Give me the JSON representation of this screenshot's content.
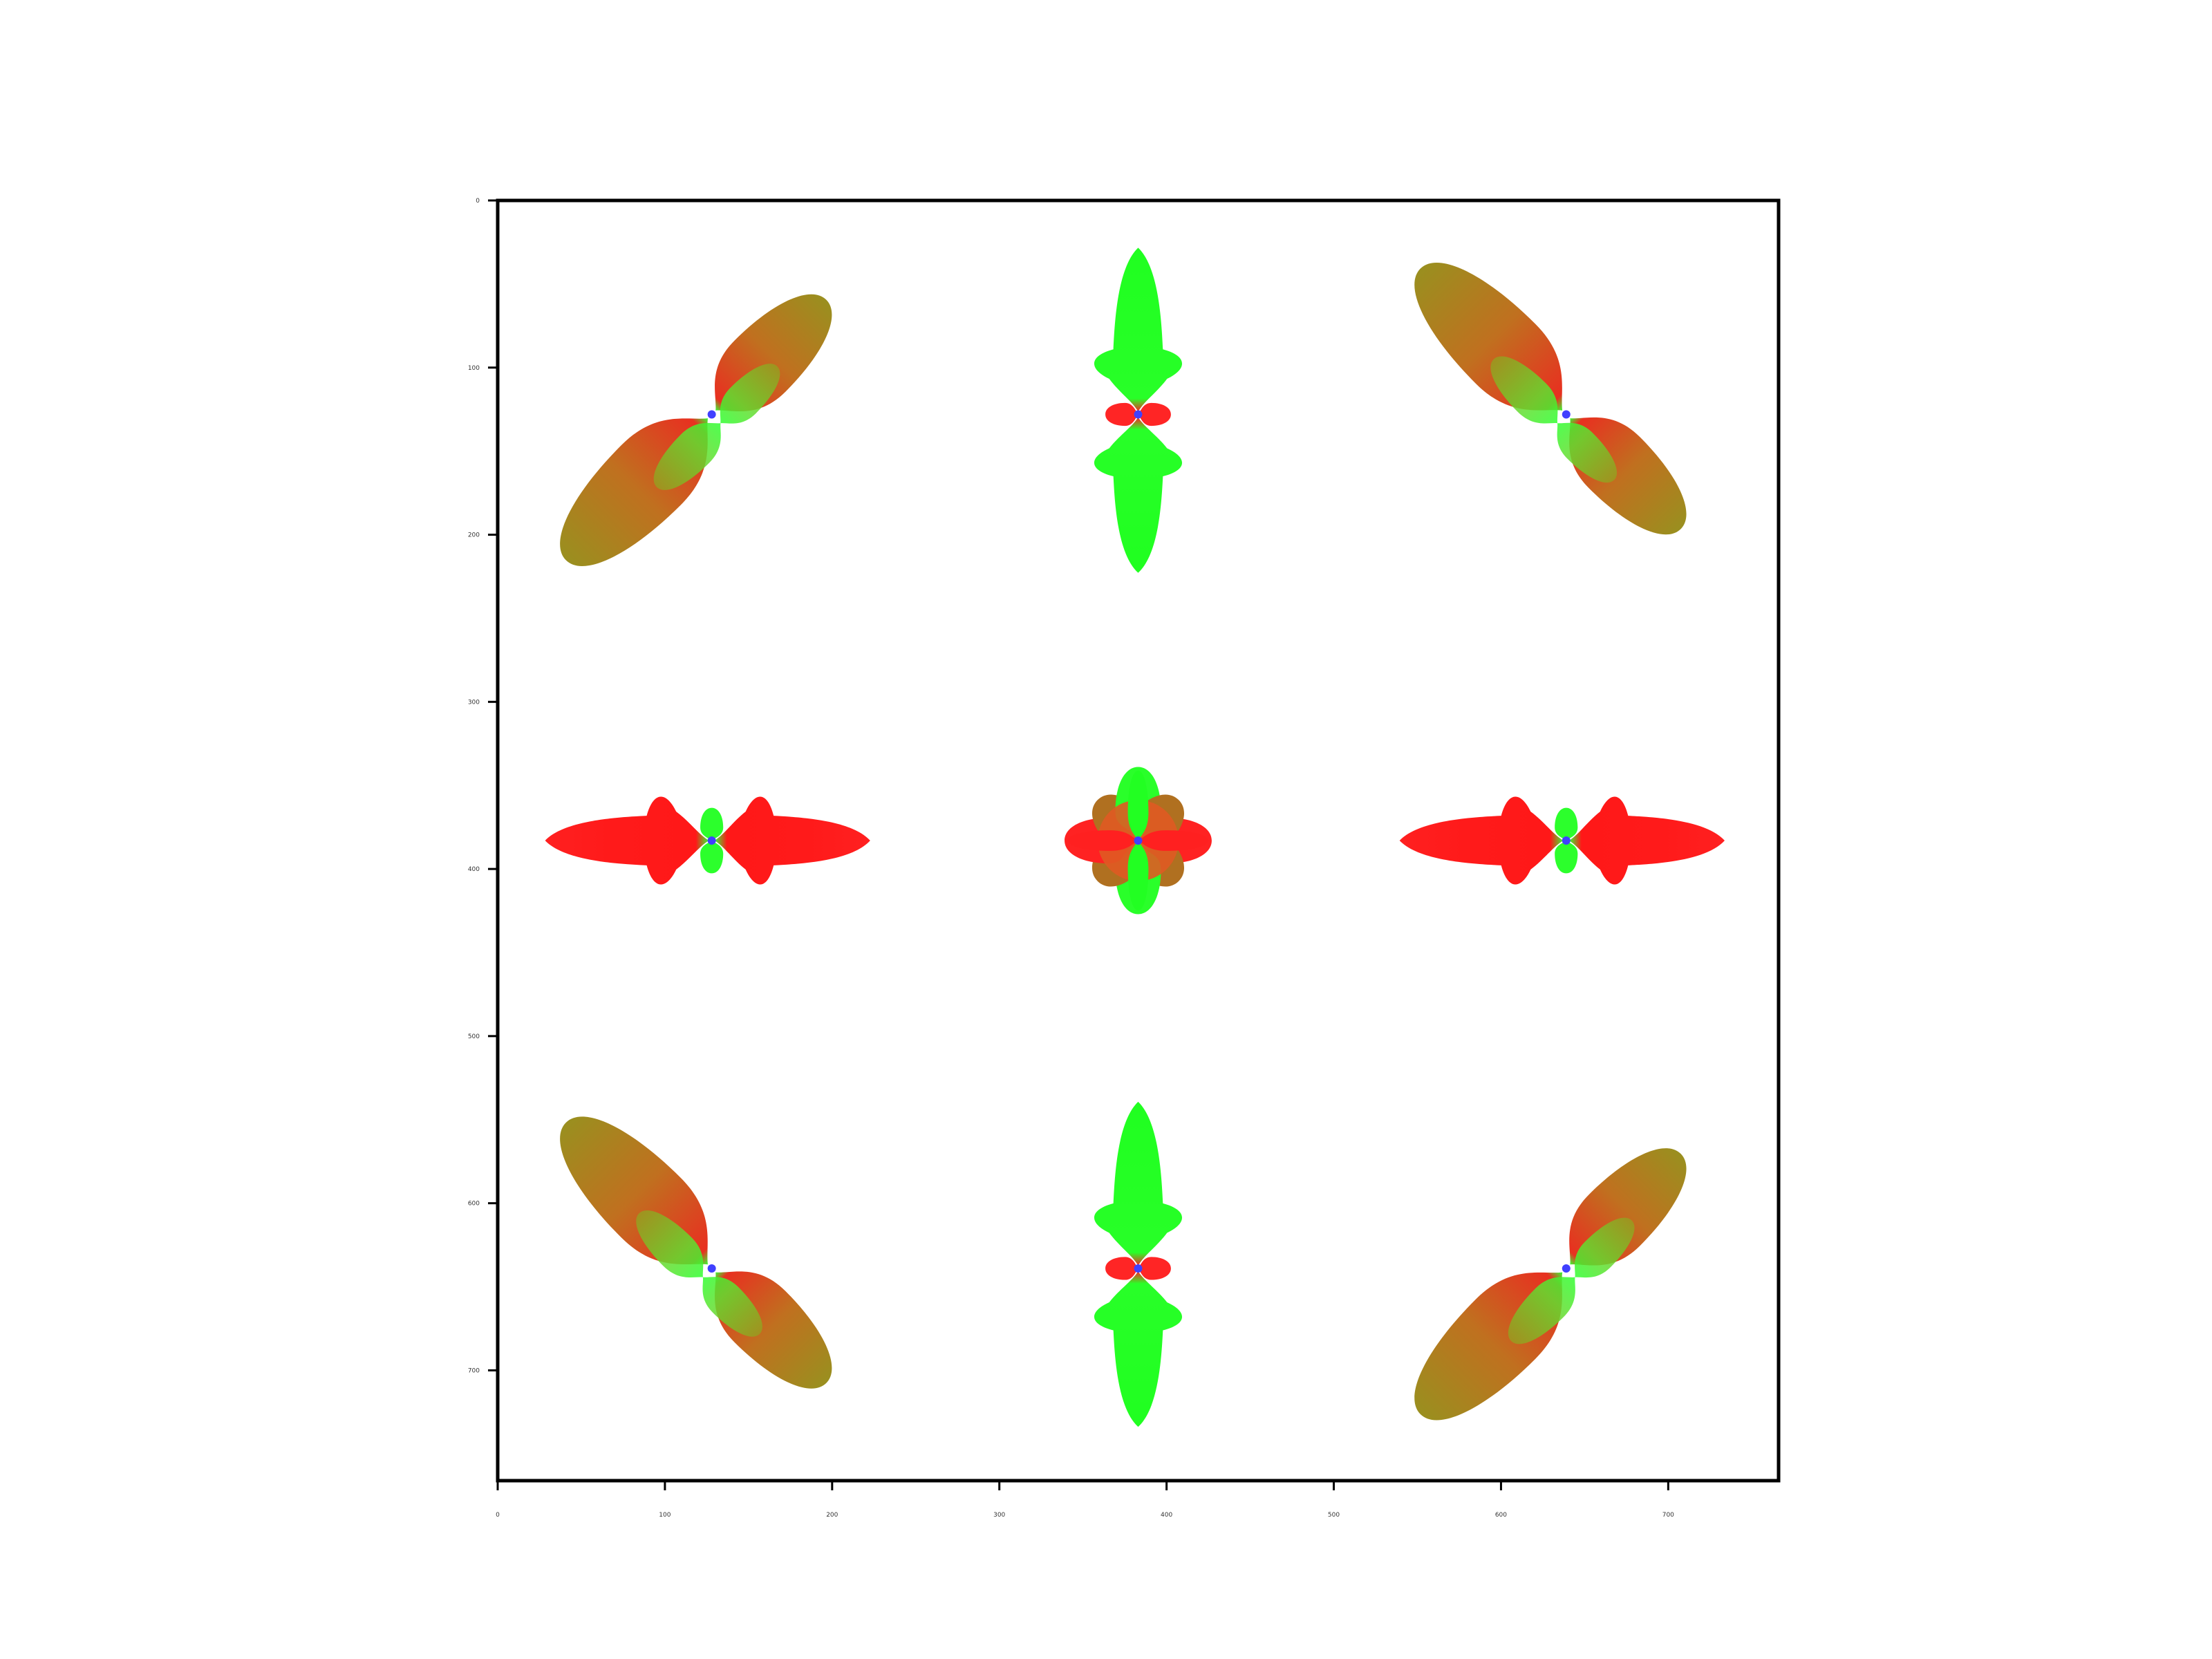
{
  "chart_data": {
    "type": "glyph-grid",
    "title": "",
    "xlabel": "",
    "ylabel": "",
    "xlim": [
      0,
      766
    ],
    "ylim": [
      0,
      766
    ],
    "y_inverted": true,
    "grid": false,
    "legend": "none",
    "x_ticks": [
      "0",
      "100",
      "200",
      "300",
      "400",
      "500",
      "600",
      "700"
    ],
    "x_tick_values": [
      0,
      100,
      200,
      300,
      400,
      500,
      600,
      700
    ],
    "y_ticks": [
      "0",
      "100",
      "200",
      "300",
      "400",
      "500",
      "600",
      "700"
    ],
    "y_tick_values": [
      0,
      100,
      200,
      300,
      400,
      500,
      600,
      700
    ],
    "colors": {
      "x_direction": "#ff2020",
      "y_direction": "#20ff20",
      "z_direction": "#4040ff",
      "frame": "#000000"
    },
    "glyphs": [
      {
        "id": "top-left",
        "center": [
          128,
          128
        ],
        "orientation_deg": -45,
        "shape": "two-lobe-asymmetric",
        "radius": 120
      },
      {
        "id": "top-center",
        "center": [
          383,
          128
        ],
        "orientation_deg": 90,
        "shape": "two-lobe-winged",
        "radius": 98
      },
      {
        "id": "top-right",
        "center": [
          639,
          128
        ],
        "orientation_deg": 45,
        "shape": "two-lobe-asymmetric",
        "radius": 120
      },
      {
        "id": "middle-left",
        "center": [
          128,
          383
        ],
        "orientation_deg": 0,
        "shape": "two-lobe-winged",
        "radius": 98
      },
      {
        "id": "center",
        "center": [
          383,
          383
        ],
        "orientation_deg": 0,
        "shape": "eight-lobe",
        "radius": 44
      },
      {
        "id": "middle-right",
        "center": [
          639,
          383
        ],
        "orientation_deg": 0,
        "shape": "two-lobe-winged",
        "radius": 98
      },
      {
        "id": "bottom-left",
        "center": [
          128,
          639
        ],
        "orientation_deg": 45,
        "shape": "two-lobe-asymmetric",
        "radius": 120
      },
      {
        "id": "bottom-center",
        "center": [
          383,
          639
        ],
        "orientation_deg": 90,
        "shape": "two-lobe-winged",
        "radius": 98
      },
      {
        "id": "bottom-right",
        "center": [
          639,
          639
        ],
        "orientation_deg": -45,
        "shape": "two-lobe-asymmetric",
        "radius": 120
      }
    ]
  }
}
